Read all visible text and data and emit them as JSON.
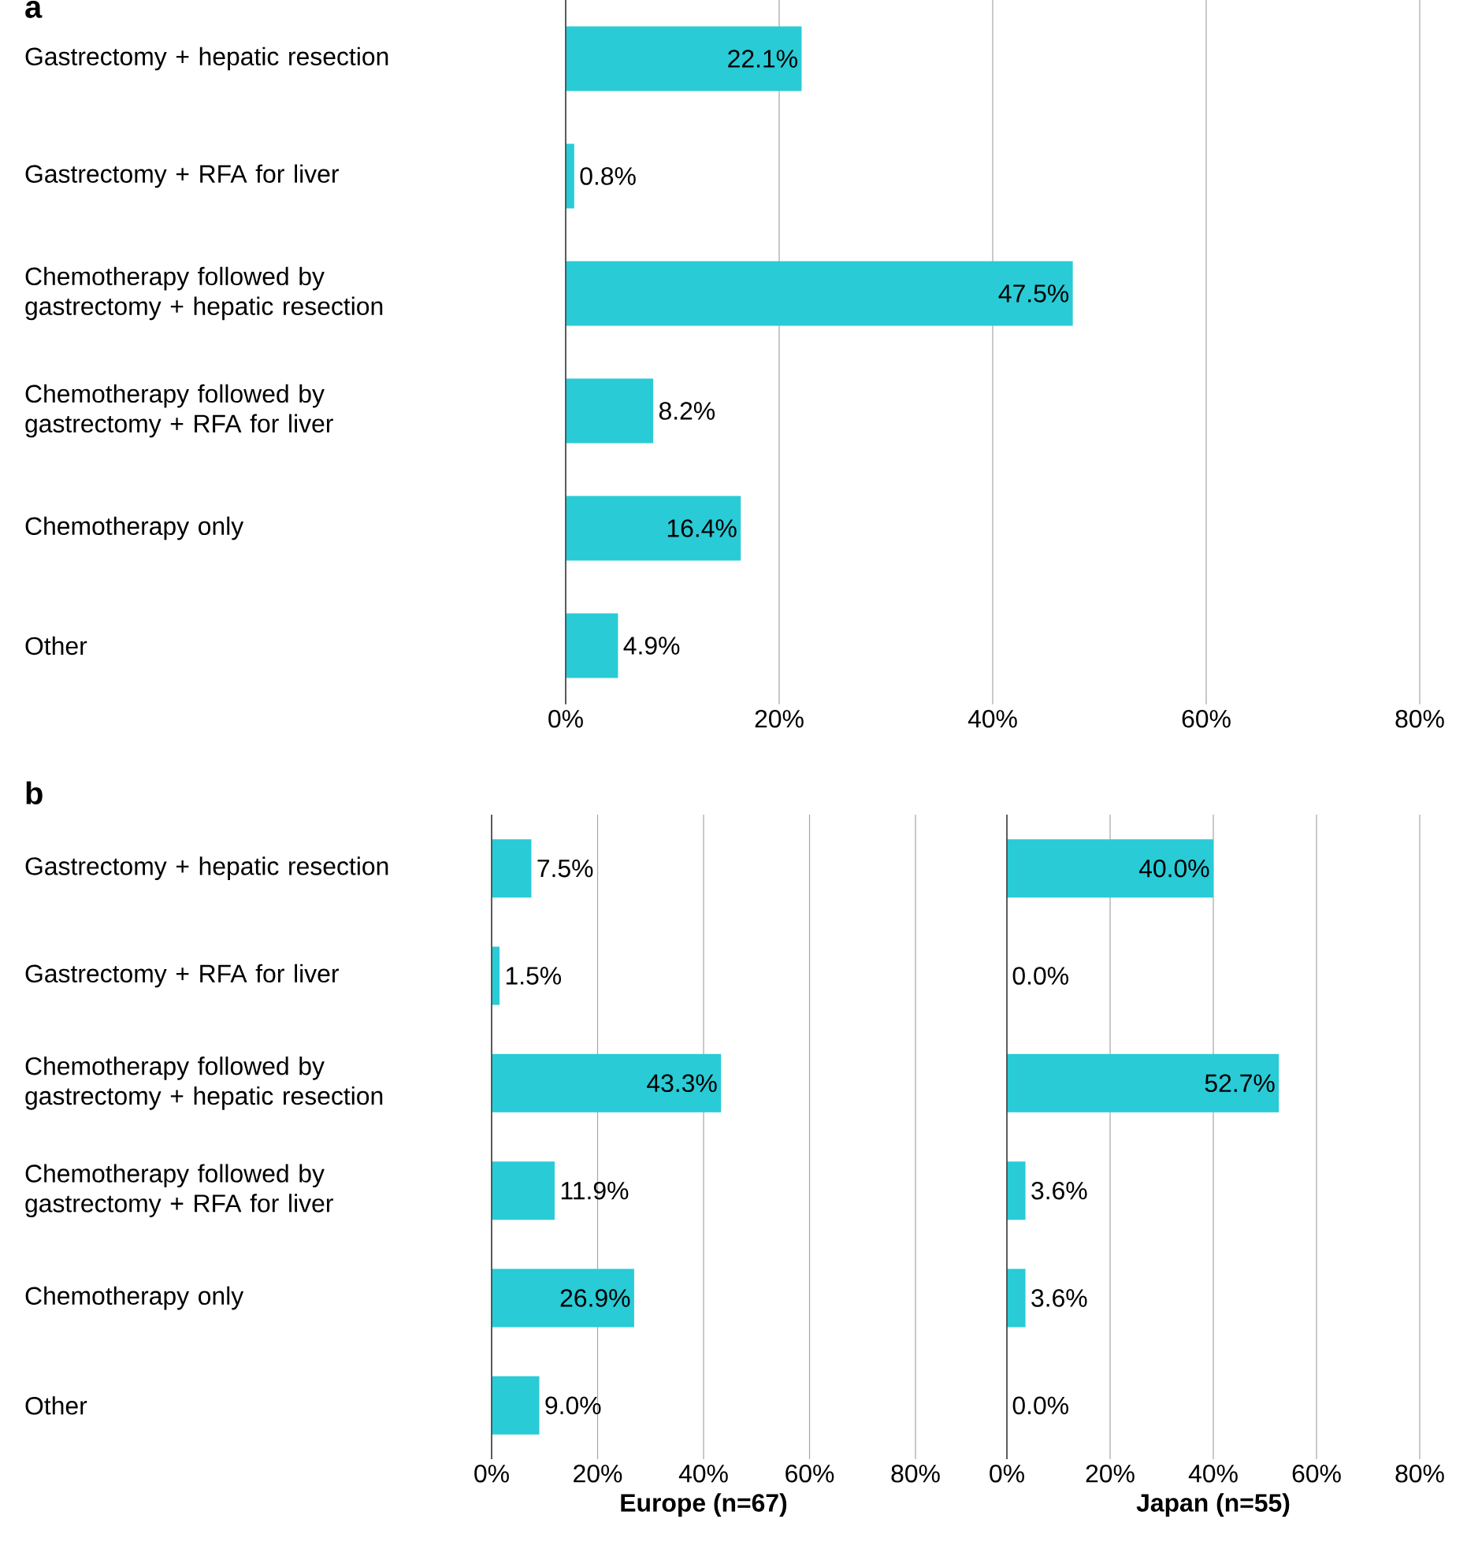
{
  "chart_data": [
    {
      "type": "bar",
      "orientation": "horizontal",
      "title": "a",
      "categories": [
        "Gastrectomy + hepatic resection",
        "Gastrectomy + RFA for liver",
        "Chemotherapy followed by gastrectomy + hepatic resection",
        "Chemotherapy followed by gastrectomy + RFA for liver",
        "Chemotherapy only",
        "Other"
      ],
      "values": [
        22.1,
        0.8,
        47.5,
        8.2,
        16.4,
        4.9
      ],
      "value_labels": [
        "22.1%",
        "0.8%",
        "47.5%",
        "8.2%",
        "16.4%",
        "4.9%"
      ],
      "color": "#29cbd6",
      "xlim": [
        0,
        80
      ],
      "xticks": [
        {
          "value": 0,
          "label": "0%"
        },
        {
          "value": 20,
          "label": "20%"
        },
        {
          "value": 40,
          "label": "40%"
        },
        {
          "value": 60,
          "label": "60%"
        },
        {
          "value": 80,
          "label": "80%"
        }
      ],
      "grid": "x"
    },
    {
      "type": "bar",
      "orientation": "horizontal",
      "title": "b",
      "xlabel": "Europe (n=67)",
      "categories": [
        "Gastrectomy + hepatic resection",
        "Gastrectomy + RFA for liver",
        "Chemotherapy followed by gastrectomy + hepatic resection",
        "Chemotherapy followed by gastrectomy + RFA for liver",
        "Chemotherapy only",
        "Other"
      ],
      "values": [
        7.5,
        1.5,
        43.3,
        11.9,
        26.9,
        9.0
      ],
      "value_labels": [
        "7.5%",
        "1.5%",
        "43.3%",
        "11.9%",
        "26.9%",
        "9.0%"
      ],
      "color": "#29cbd6",
      "xlim": [
        0,
        80
      ],
      "xticks": [
        {
          "value": 0,
          "label": "0%"
        },
        {
          "value": 20,
          "label": "20%"
        },
        {
          "value": 40,
          "label": "40%"
        },
        {
          "value": 60,
          "label": "60%"
        },
        {
          "value": 80,
          "label": "80%"
        }
      ],
      "grid": "x"
    },
    {
      "type": "bar",
      "orientation": "horizontal",
      "xlabel": "Japan (n=55)",
      "categories": [
        null,
        null,
        null,
        null,
        null,
        null
      ],
      "values": [
        40.0,
        0.0,
        52.7,
        3.6,
        3.6,
        0.0
      ],
      "value_labels": [
        "40.0%",
        "0.0%",
        "52.7%",
        "3.6%",
        "3.6%",
        "0.0%"
      ],
      "color": "#29cbd6",
      "xlim": [
        0,
        80
      ],
      "xticks": [
        {
          "value": 0,
          "label": "0%"
        },
        {
          "value": 20,
          "label": "20%"
        },
        {
          "value": 40,
          "label": "40%"
        },
        {
          "value": 60,
          "label": "60%"
        },
        {
          "value": 80,
          "label": "80%"
        }
      ],
      "grid": "x",
      "tick_labels": "x"
    }
  ]
}
